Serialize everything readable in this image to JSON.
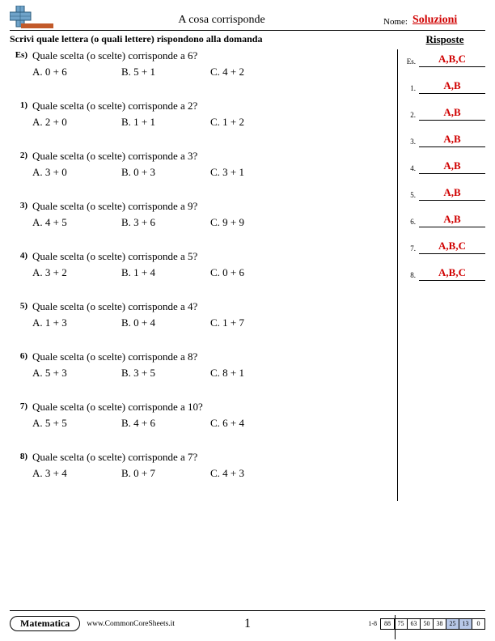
{
  "header": {
    "title": "A cosa corrisponde",
    "name_label": "Nome:",
    "name_value": "Soluzioni"
  },
  "instruction": "Scrivi quale lettera (o quali lettere) rispondono alla domanda",
  "answers_heading": "Risposte",
  "questions": [
    {
      "num": "Es)",
      "text": "Quale scelta (o scelte) corrisponde a 6?",
      "a": "A. 0 + 6",
      "b": "B. 5 + 1",
      "c": "C. 4 + 2"
    },
    {
      "num": "1)",
      "text": "Quale scelta (o scelte) corrisponde a 2?",
      "a": "A. 2 + 0",
      "b": "B. 1 + 1",
      "c": "C. 1 + 2"
    },
    {
      "num": "2)",
      "text": "Quale scelta (o scelte) corrisponde a 3?",
      "a": "A. 3 + 0",
      "b": "B. 0 + 3",
      "c": "C. 3 + 1"
    },
    {
      "num": "3)",
      "text": "Quale scelta (o scelte) corrisponde a 9?",
      "a": "A. 4 + 5",
      "b": "B. 3 + 6",
      "c": "C. 9 + 9"
    },
    {
      "num": "4)",
      "text": "Quale scelta (o scelte) corrisponde a 5?",
      "a": "A. 3 + 2",
      "b": "B. 1 + 4",
      "c": "C. 0 + 6"
    },
    {
      "num": "5)",
      "text": "Quale scelta (o scelte) corrisponde a 4?",
      "a": "A. 1 + 3",
      "b": "B. 0 + 4",
      "c": "C. 1 + 7"
    },
    {
      "num": "6)",
      "text": "Quale scelta (o scelte) corrisponde a 8?",
      "a": "A. 5 + 3",
      "b": "B. 3 + 5",
      "c": "C. 8 + 1"
    },
    {
      "num": "7)",
      "text": "Quale scelta (o scelte) corrisponde a 10?",
      "a": "A. 5 + 5",
      "b": "B. 4 + 6",
      "c": "C. 6 + 4"
    },
    {
      "num": "8)",
      "text": "Quale scelta (o scelte) corrisponde a 7?",
      "a": "A. 3 + 4",
      "b": "B. 0 + 7",
      "c": "C. 4 + 3"
    }
  ],
  "answers": [
    {
      "num": "Es.",
      "value": "A,B,C"
    },
    {
      "num": "1.",
      "value": "A,B"
    },
    {
      "num": "2.",
      "value": "A,B"
    },
    {
      "num": "3.",
      "value": "A,B"
    },
    {
      "num": "4.",
      "value": "A,B"
    },
    {
      "num": "5.",
      "value": "A,B"
    },
    {
      "num": "6.",
      "value": "A,B"
    },
    {
      "num": "7.",
      "value": "A,B,C"
    },
    {
      "num": "8.",
      "value": "A,B,C"
    }
  ],
  "footer": {
    "subject": "Matematica",
    "url": "www.CommonCoreSheets.it",
    "page_num": "1",
    "score_range": "1-8",
    "score_boxes": [
      "88",
      "75",
      "63",
      "50",
      "38",
      "25",
      "13",
      "0"
    ],
    "highlight_colors": {
      "default_bg": "#ffffff",
      "highlight_bg": "#b8c8e8"
    },
    "highlight_indices": [
      5,
      6
    ]
  },
  "logo": {
    "grid_color": "#6fa3c9",
    "grid_stroke": "#2a5a7a",
    "bar_color": "#c25a2a"
  }
}
